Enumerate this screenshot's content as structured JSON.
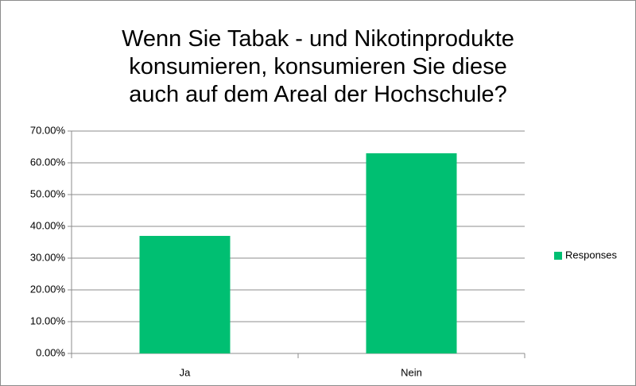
{
  "chart_data": {
    "type": "bar",
    "title": "Wenn Sie Tabak - und Nikotinprodukte\nkonsumieren, konsumieren Sie diese\nauch auf dem Areal der Hochschule?",
    "categories": [
      "Ja",
      "Nein"
    ],
    "series": [
      {
        "name": "Responses",
        "color": "#00bf72",
        "values": [
          37.0,
          63.0
        ]
      }
    ],
    "ylim": [
      0,
      70
    ],
    "yticks": [
      {
        "value": 0,
        "label": "0.00%"
      },
      {
        "value": 10,
        "label": "10.00%"
      },
      {
        "value": 20,
        "label": "20.00%"
      },
      {
        "value": 30,
        "label": "30.00%"
      },
      {
        "value": 40,
        "label": "40.00%"
      },
      {
        "value": 50,
        "label": "50.00%"
      },
      {
        "value": 60,
        "label": "60.00%"
      },
      {
        "value": 70,
        "label": "70.00%"
      }
    ],
    "grid": true,
    "legend": "right"
  }
}
